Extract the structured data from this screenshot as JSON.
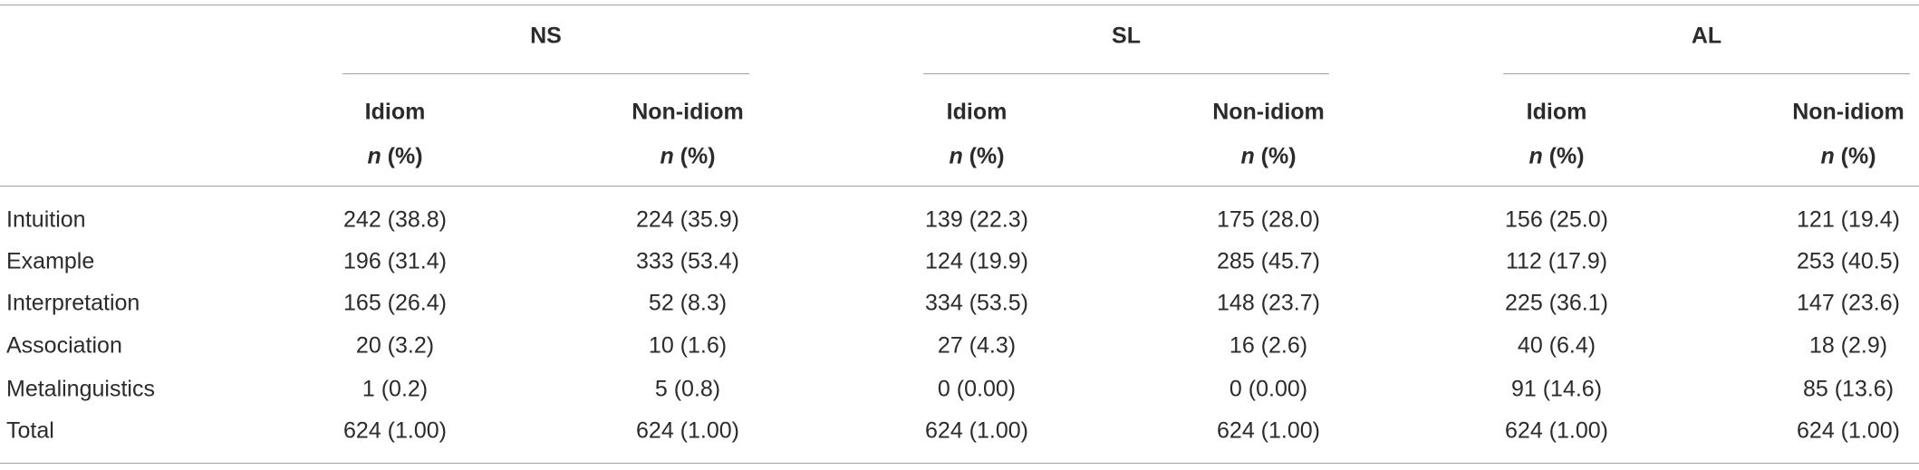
{
  "table": {
    "groups": [
      "NS",
      "SL",
      "AL"
    ],
    "columns": [
      {
        "label": "Idiom",
        "stat_var": "n",
        "stat_unit": "(%)"
      },
      {
        "label": "Non-idiom",
        "stat_var": "n",
        "stat_unit": "(%)"
      },
      {
        "label": "Idiom",
        "stat_var": "n",
        "stat_unit": "(%)"
      },
      {
        "label": "Non-idiom",
        "stat_var": "n",
        "stat_unit": "(%)"
      },
      {
        "label": "Idiom",
        "stat_var": "n",
        "stat_unit": "(%)"
      },
      {
        "label": "Non-idiom",
        "stat_var": "n",
        "stat_unit": "(%)"
      }
    ],
    "rows": [
      {
        "label": "Intuition",
        "cells": [
          "242 (38.8)",
          "224 (35.9)",
          "139 (22.3)",
          "175 (28.0)",
          "156 (25.0)",
          "121 (19.4)"
        ]
      },
      {
        "label": "Example",
        "cells": [
          "196 (31.4)",
          "333 (53.4)",
          "124 (19.9)",
          "285 (45.7)",
          "112 (17.9)",
          "253 (40.5)"
        ]
      },
      {
        "label": "Interpretation",
        "cells": [
          "165 (26.4)",
          "52 (8.3)",
          "334 (53.5)",
          "148 (23.7)",
          "225 (36.1)",
          "147 (23.6)"
        ]
      },
      {
        "label": "Association",
        "cells": [
          "20 (3.2)",
          "10 (1.6)",
          "27 (4.3)",
          "16 (2.6)",
          "40 (6.4)",
          "18 (2.9)"
        ]
      },
      {
        "label": "Metalinguistics",
        "cells": [
          "1 (0.2)",
          "5 (0.8)",
          "0 (0.00)",
          "0 (0.00)",
          "91 (14.6)",
          "85 (13.6)"
        ]
      },
      {
        "label": "Total",
        "cells": [
          "624 (1.00)",
          "624 (1.00)",
          "624 (1.00)",
          "624 (1.00)",
          "624 (1.00)",
          "624 (1.00)"
        ]
      }
    ]
  }
}
